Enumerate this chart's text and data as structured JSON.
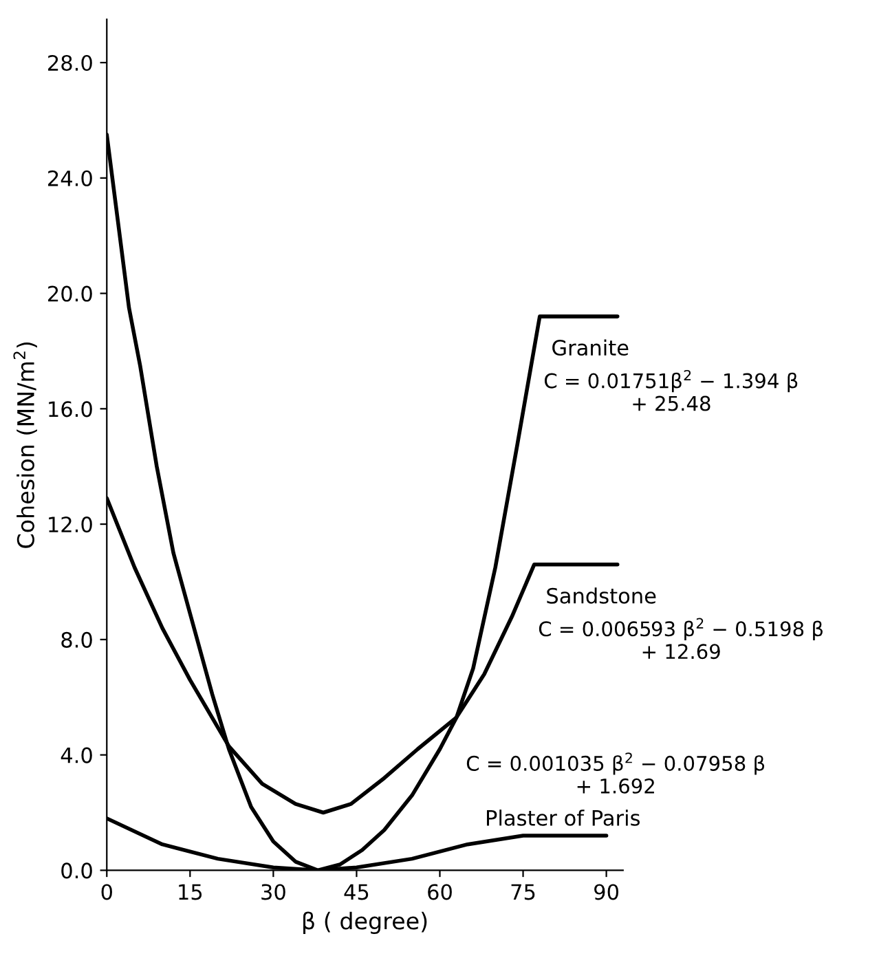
{
  "chart_data": {
    "type": "line",
    "xlabel": "β ( degree)",
    "ylabel": "Cohesion (MN/m$^{2}$)",
    "xlim": [
      0,
      93
    ],
    "ylim": [
      0,
      29.5
    ],
    "xticks": [
      0,
      15,
      30,
      45,
      60,
      75,
      90
    ],
    "yticks": [
      {
        "value": 0,
        "label": "0.0"
      },
      {
        "value": 4,
        "label": "4.0"
      },
      {
        "value": 8,
        "label": "8.0"
      },
      {
        "value": 12,
        "label": "12.0"
      },
      {
        "value": 16,
        "label": "16.0"
      },
      {
        "value": 20,
        "label": "20.0"
      },
      {
        "value": 24,
        "label": "24.0"
      },
      {
        "value": 28,
        "label": "28.0"
      }
    ],
    "grid": false,
    "legend": false,
    "marker": "none",
    "line_style": "solid",
    "series": [
      {
        "name": "Granite",
        "color": "#000000",
        "x": [
          0,
          2,
          4,
          6,
          9,
          12,
          15,
          19,
          22,
          26,
          30,
          34,
          38,
          42,
          46,
          50,
          55,
          60,
          63,
          66,
          70,
          74,
          78,
          92
        ],
        "values": [
          25.5,
          22.5,
          19.5,
          17.5,
          14,
          11,
          8.9,
          6.1,
          4.2,
          2.2,
          1.0,
          0.3,
          0,
          0.2,
          0.7,
          1.4,
          2.6,
          4.2,
          5.3,
          7.0,
          10.5,
          14.8,
          19.2,
          19.2
        ]
      },
      {
        "name": "Sandstone",
        "color": "#000000",
        "x": [
          0,
          5,
          10,
          15,
          22,
          28,
          34,
          39,
          44,
          50,
          56,
          63,
          68,
          73,
          77,
          92
        ],
        "values": [
          12.9,
          10.5,
          8.4,
          6.6,
          4.3,
          3.0,
          2.3,
          2.0,
          2.3,
          3.2,
          4.2,
          5.3,
          6.8,
          8.8,
          10.6,
          10.6
        ]
      },
      {
        "name": "Plaster of Paris",
        "color": "#000000",
        "x": [
          0,
          10,
          20,
          30,
          38,
          45,
          55,
          65,
          75,
          90
        ],
        "values": [
          1.8,
          0.9,
          0.4,
          0.1,
          0,
          0.1,
          0.4,
          0.9,
          1.2,
          1.2
        ]
      }
    ],
    "annotations": [
      "C = 0.01751β$^{2}$ − 1.394 β\n+ 25.48",
      "C = 0.006593 β$^{2}$ − 0.5198 β\n+ 12.69",
      "C = 0.001035 β$^{2}$ − 0.07958 β\n+ 1.692"
    ]
  }
}
